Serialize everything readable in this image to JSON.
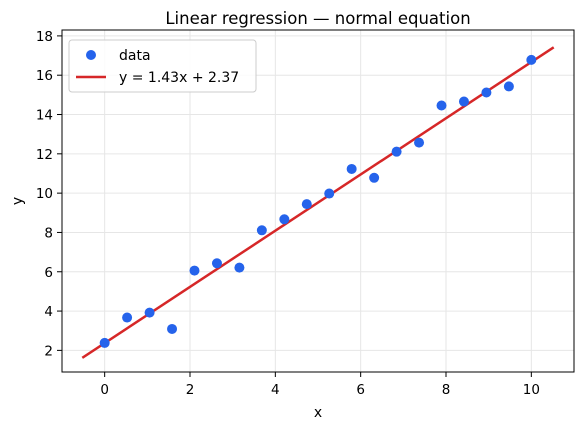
{
  "chart_data": {
    "type": "scatter",
    "title": "Linear regression — normal equation",
    "xlabel": "x",
    "ylabel": "y",
    "xlim": [
      -1.0,
      11.0
    ],
    "ylim": [
      0.9,
      18.3
    ],
    "xticks": [
      0,
      2,
      4,
      6,
      8,
      10
    ],
    "yticks": [
      2,
      4,
      6,
      8,
      10,
      12,
      14,
      16,
      18
    ],
    "grid": true,
    "legend_position": "top-left",
    "series": [
      {
        "name": "data",
        "kind": "scatter",
        "color": "#2563eb",
        "x": [
          0.0,
          0.526,
          1.053,
          1.579,
          2.105,
          2.632,
          3.158,
          3.684,
          4.211,
          4.737,
          5.263,
          5.789,
          6.316,
          6.842,
          7.368,
          7.895,
          8.421,
          8.947,
          9.474,
          10.0
        ],
        "y": [
          2.38,
          3.67,
          3.92,
          3.09,
          6.06,
          6.43,
          6.21,
          8.11,
          8.67,
          9.44,
          9.98,
          11.23,
          10.78,
          12.11,
          12.57,
          14.46,
          14.66,
          15.12,
          15.43,
          16.78
        ]
      },
      {
        "name": "y = 1.43x + 2.37",
        "kind": "line",
        "color": "#d62728",
        "slope": 1.43,
        "intercept": 2.37,
        "x_range": [
          -0.5,
          10.5
        ]
      }
    ]
  }
}
